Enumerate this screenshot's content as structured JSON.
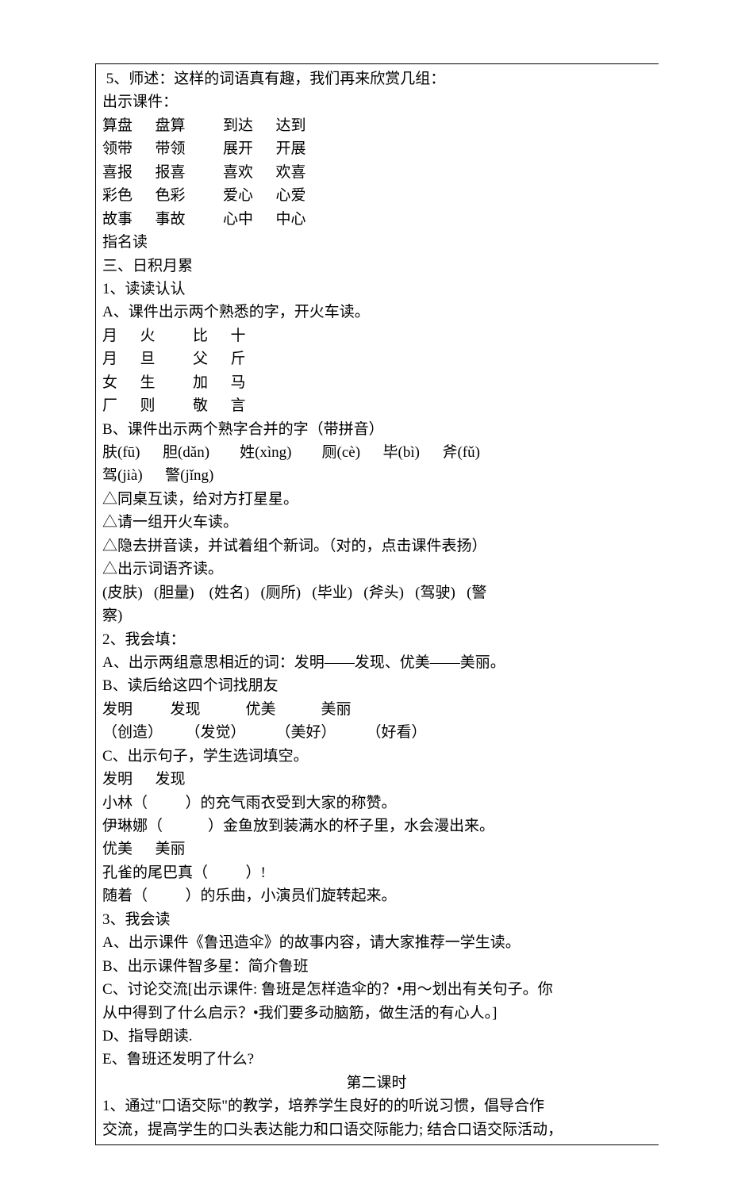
{
  "lines": [
    {
      "t": " 5、师述：这样的词语真有趣，我们再来欣赏几组："
    },
    {
      "t": "出示课件："
    },
    {
      "t": "算盘      盘算          到达      达到"
    },
    {
      "t": "领带      带领          展开      开展"
    },
    {
      "t": "喜报      报喜          喜欢      欢喜"
    },
    {
      "t": "彩色      色彩          爱心      心爱"
    },
    {
      "t": "故事      事故          心中      中心"
    },
    {
      "t": "指名读"
    },
    {
      "t": "三、日积月累"
    },
    {
      "t": "1、读读认认"
    },
    {
      "t": "A、课件出示两个熟悉的字，开火车读。"
    },
    {
      "t": "月      火          比      十"
    },
    {
      "t": "月      旦          父      斤"
    },
    {
      "t": "女      生          加      马"
    },
    {
      "t": "厂      则          敬      言"
    },
    {
      "t": "B、课件出示两个熟字合并的字（带拼音）"
    },
    {
      "t": "肤(fū)      胆(dǎn)        姓(xìng)        厕(cè)      毕(bì)      斧(fǔ)"
    },
    {
      "t": "驾(jià)      警(jǐng)"
    },
    {
      "t": "△同桌互读，给对方打星星。"
    },
    {
      "t": "△请一组开火车读。"
    },
    {
      "t": "△隐去拼音读，并试着组个新词。（对的，点击课件表扬）"
    },
    {
      "t": "△出示词语齐读。"
    },
    {
      "t": "(皮肤)   (胆量)    (姓名)   (厕所)   (毕业)   (斧头)   (驾驶)   (警"
    },
    {
      "t": "察)"
    },
    {
      "t": "2、我会填："
    },
    {
      "t": "A、出示两组意思相近的词：发明——发现、优美——美丽。"
    },
    {
      "t": "B、读后给这四个词找朋友"
    },
    {
      "t": "发明          发现            优美            美丽"
    },
    {
      "t": "（创造）      （发觉）        （美好）        （好看）"
    },
    {
      "t": "C、出示句子，学生选词填空。"
    },
    {
      "t": "发明      发现"
    },
    {
      "t": "小林（          ）的充气雨衣受到大家的称赞。"
    },
    {
      "t": "伊琳娜（            ）金鱼放到装满水的杯子里，水会漫出来。"
    },
    {
      "t": "优美      美丽"
    },
    {
      "t": "孔雀的尾巴真（          ）!"
    },
    {
      "t": "随着（          ）的乐曲，小演员们旋转起来。"
    },
    {
      "t": "3、我会读"
    },
    {
      "t": "A、出示课件《鲁迅造伞》的故事内容，请大家推荐一学生读。"
    },
    {
      "t": "B、出示课件智多星：简介鲁班"
    },
    {
      "t": "C、讨论交流[出示课件: 鲁班是怎样造伞的？•用～划出有关句子。你"
    },
    {
      "t": "从中得到了什么启示？•我们要多动脑筋，做生活的有心人。]"
    },
    {
      "t": "D、指导朗读."
    },
    {
      "t": "E、鲁班还发明了什么?"
    },
    {
      "t": "第二课时",
      "center": true
    },
    {
      "t": "1、通过\"口语交际\"的教学，培养学生良好的的听说习惯，倡导合作"
    },
    {
      "t": "交流，提高学生的口头表达能力和口语交际能力; 结合口语交际活动，"
    }
  ]
}
